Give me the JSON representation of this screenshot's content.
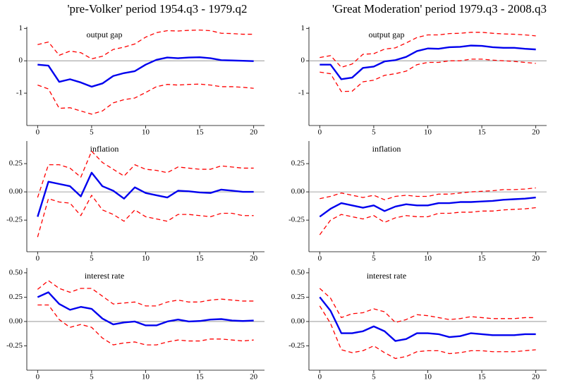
{
  "chart_data": [
    {
      "type": "line",
      "title": "'pre-Volker' period 1954.q3 - 1979.q2",
      "subtitle": "output gap",
      "x": [
        0,
        1,
        2,
        3,
        4,
        5,
        6,
        7,
        8,
        9,
        10,
        11,
        12,
        13,
        14,
        15,
        16,
        17,
        18,
        19,
        20
      ],
      "series": [
        {
          "color": "#ff0000",
          "style": "dashed",
          "values": [
            -0.75,
            -0.87,
            -1.47,
            -1.45,
            -1.55,
            -1.65,
            -1.55,
            -1.3,
            -1.2,
            -1.15,
            -0.98,
            -0.8,
            -0.73,
            -0.75,
            -0.73,
            -0.72,
            -0.75,
            -0.8,
            -0.8,
            -0.82,
            -0.85
          ]
        },
        {
          "color": "#0000ee",
          "style": "solid",
          "values": [
            -0.12,
            -0.15,
            -0.65,
            -0.57,
            -0.67,
            -0.8,
            -0.7,
            -0.47,
            -0.38,
            -0.32,
            -0.12,
            0.03,
            0.1,
            0.08,
            0.1,
            0.11,
            0.08,
            0.02,
            0.01,
            0,
            -0.01
          ]
        },
        {
          "color": "#ff0000",
          "style": "dashed",
          "values": [
            0.5,
            0.58,
            0.17,
            0.3,
            0.25,
            0.06,
            0.14,
            0.35,
            0.42,
            0.52,
            0.73,
            0.87,
            0.93,
            0.92,
            0.94,
            0.95,
            0.93,
            0.85,
            0.84,
            0.82,
            0.82
          ]
        }
      ],
      "xlim": [
        -1,
        21
      ],
      "xticks": [
        0,
        5,
        10,
        15,
        20
      ],
      "ylim": [
        -2,
        1.05
      ],
      "yticks": [
        -1,
        0,
        1
      ],
      "zero_line": true
    },
    {
      "type": "line",
      "title": "'Great Moderation' period 1979.q3 - 2008.q3",
      "subtitle": "output gap",
      "x": [
        0,
        1,
        2,
        3,
        4,
        5,
        6,
        7,
        8,
        9,
        10,
        11,
        12,
        13,
        14,
        15,
        16,
        17,
        18,
        19,
        20
      ],
      "series": [
        {
          "color": "#ff0000",
          "style": "dashed",
          "values": [
            -0.35,
            -0.4,
            -0.95,
            -0.94,
            -0.65,
            -0.6,
            -0.45,
            -0.4,
            -0.32,
            -0.12,
            -0.05,
            -0.05,
            0,
            0,
            0.05,
            0.05,
            0.02,
            0,
            -0.02,
            -0.05,
            -0.08
          ]
        },
        {
          "color": "#0000ee",
          "style": "solid",
          "values": [
            -0.12,
            -0.12,
            -0.57,
            -0.52,
            -0.22,
            -0.18,
            -0.02,
            0.02,
            0.12,
            0.3,
            0.38,
            0.37,
            0.42,
            0.43,
            0.47,
            0.46,
            0.42,
            0.4,
            0.4,
            0.37,
            0.35
          ]
        },
        {
          "color": "#ff0000",
          "style": "dashed",
          "values": [
            0.1,
            0.16,
            -0.2,
            -0.1,
            0.2,
            0.22,
            0.36,
            0.4,
            0.55,
            0.72,
            0.8,
            0.8,
            0.84,
            0.85,
            0.88,
            0.88,
            0.85,
            0.83,
            0.82,
            0.8,
            0.77
          ]
        }
      ],
      "xlim": [
        -1,
        21
      ],
      "xticks": [
        0,
        5,
        10,
        15,
        20
      ],
      "ylim": [
        -2,
        1.05
      ],
      "yticks": [
        -1,
        0,
        1
      ],
      "zero_line": true
    },
    {
      "type": "line",
      "subtitle": "inflation",
      "x": [
        0,
        1,
        2,
        3,
        4,
        5,
        6,
        7,
        8,
        9,
        10,
        11,
        12,
        13,
        14,
        15,
        16,
        17,
        18,
        19,
        20
      ],
      "series": [
        {
          "color": "#ff0000",
          "style": "dashed",
          "values": [
            -0.4,
            -0.06,
            -0.09,
            -0.1,
            -0.21,
            -0.03,
            -0.16,
            -0.2,
            -0.26,
            -0.16,
            -0.22,
            -0.24,
            -0.26,
            -0.2,
            -0.2,
            -0.21,
            -0.22,
            -0.19,
            -0.19,
            -0.21,
            -0.21
          ]
        },
        {
          "color": "#0000ee",
          "style": "solid",
          "values": [
            -0.22,
            0.09,
            0.07,
            0.05,
            -0.04,
            0.17,
            0.05,
            0.01,
            -0.06,
            0.04,
            -0.01,
            -0.03,
            -0.05,
            0.01,
            0.005,
            -0.005,
            -0.01,
            0.02,
            0.01,
            0,
            0
          ]
        },
        {
          "color": "#ff0000",
          "style": "dashed",
          "values": [
            -0.05,
            0.24,
            0.24,
            0.21,
            0.13,
            0.36,
            0.26,
            0.2,
            0.14,
            0.24,
            0.2,
            0.19,
            0.17,
            0.22,
            0.21,
            0.2,
            0.2,
            0.23,
            0.22,
            0.21,
            0.21
          ]
        }
      ],
      "xlim": [
        -1,
        21
      ],
      "xticks": [
        0,
        5,
        10,
        15,
        20
      ],
      "ylim": [
        -0.53,
        0.45
      ],
      "yticks": [
        -0.25,
        {
          "value": 0,
          "label": "0.00"
        },
        0.25
      ],
      "zero_line": true
    },
    {
      "type": "line",
      "subtitle": "inflation",
      "x": [
        0,
        1,
        2,
        3,
        4,
        5,
        6,
        7,
        8,
        9,
        10,
        11,
        12,
        13,
        14,
        15,
        16,
        17,
        18,
        19,
        20
      ],
      "series": [
        {
          "color": "#ff0000",
          "style": "dashed",
          "values": [
            -0.38,
            -0.25,
            -0.2,
            -0.22,
            -0.24,
            -0.21,
            -0.27,
            -0.23,
            -0.21,
            -0.22,
            -0.22,
            -0.19,
            -0.19,
            -0.18,
            -0.18,
            -0.17,
            -0.17,
            -0.16,
            -0.155,
            -0.15,
            -0.14
          ]
        },
        {
          "color": "#0000ee",
          "style": "solid",
          "values": [
            -0.22,
            -0.15,
            -0.1,
            -0.12,
            -0.14,
            -0.12,
            -0.17,
            -0.13,
            -0.11,
            -0.12,
            -0.12,
            -0.1,
            -0.1,
            -0.09,
            -0.09,
            -0.085,
            -0.08,
            -0.07,
            -0.065,
            -0.06,
            -0.05
          ]
        },
        {
          "color": "#ff0000",
          "style": "dashed",
          "values": [
            -0.06,
            -0.04,
            -0.01,
            -0.03,
            -0.05,
            -0.03,
            -0.07,
            -0.04,
            -0.03,
            -0.04,
            -0.04,
            -0.02,
            -0.02,
            -0.01,
            0,
            0.005,
            0.01,
            0.02,
            0.02,
            0.025,
            0.035
          ]
        }
      ],
      "xlim": [
        -1,
        21
      ],
      "xticks": [
        0,
        5,
        10,
        15,
        20
      ],
      "ylim": [
        -0.53,
        0.45
      ],
      "yticks": [
        -0.25,
        {
          "value": 0,
          "label": "0.00"
        },
        0.25
      ],
      "zero_line": true
    },
    {
      "type": "line",
      "subtitle": "interest rate",
      "x": [
        0,
        1,
        2,
        3,
        4,
        5,
        6,
        7,
        8,
        9,
        10,
        11,
        12,
        13,
        14,
        15,
        16,
        17,
        18,
        19,
        20
      ],
      "series": [
        {
          "color": "#ff0000",
          "style": "dashed",
          "values": [
            0.17,
            0.17,
            0.02,
            -0.06,
            -0.03,
            -0.06,
            -0.17,
            -0.24,
            -0.22,
            -0.21,
            -0.24,
            -0.24,
            -0.21,
            -0.19,
            -0.2,
            -0.2,
            -0.18,
            -0.18,
            -0.19,
            -0.2,
            -0.19
          ]
        },
        {
          "color": "#0000ee",
          "style": "solid",
          "values": [
            0.25,
            0.3,
            0.18,
            0.12,
            0.15,
            0.13,
            0.03,
            -0.03,
            -0.01,
            0,
            -0.04,
            -0.04,
            0,
            0.02,
            0,
            0.005,
            0.02,
            0.025,
            0.01,
            0.005,
            0.01
          ]
        },
        {
          "color": "#ff0000",
          "style": "dashed",
          "values": [
            0.33,
            0.42,
            0.34,
            0.3,
            0.34,
            0.34,
            0.26,
            0.18,
            0.19,
            0.2,
            0.16,
            0.16,
            0.2,
            0.22,
            0.2,
            0.2,
            0.22,
            0.23,
            0.22,
            0.21,
            0.21
          ]
        }
      ],
      "xlim": [
        -1,
        21
      ],
      "xticks": [
        0,
        5,
        10,
        15,
        20
      ],
      "ylim": [
        -0.5,
        0.55
      ],
      "yticks": [
        -0.25,
        {
          "value": 0,
          "label": "0.00"
        },
        0.25,
        {
          "value": 0.5,
          "label": "0.50"
        }
      ],
      "zero_line": true
    },
    {
      "type": "line",
      "subtitle": "interest rate",
      "x": [
        0,
        1,
        2,
        3,
        4,
        5,
        6,
        7,
        8,
        9,
        10,
        11,
        12,
        13,
        14,
        15,
        16,
        17,
        18,
        19,
        20
      ],
      "series": [
        {
          "color": "#ff0000",
          "style": "dashed",
          "values": [
            0.16,
            -0.02,
            -0.29,
            -0.32,
            -0.3,
            -0.25,
            -0.32,
            -0.38,
            -0.36,
            -0.31,
            -0.3,
            -0.3,
            -0.33,
            -0.32,
            -0.3,
            -0.3,
            -0.31,
            -0.31,
            -0.31,
            -0.3,
            -0.29
          ]
        },
        {
          "color": "#0000ee",
          "style": "solid",
          "values": [
            0.25,
            0.11,
            -0.12,
            -0.12,
            -0.1,
            -0.05,
            -0.1,
            -0.2,
            -0.18,
            -0.12,
            -0.12,
            -0.13,
            -0.16,
            -0.15,
            -0.12,
            -0.13,
            -0.14,
            -0.14,
            -0.14,
            -0.13,
            -0.13
          ]
        },
        {
          "color": "#ff0000",
          "style": "dashed",
          "values": [
            0.34,
            0.24,
            0.04,
            0.08,
            0.09,
            0.13,
            0.1,
            -0.01,
            0.02,
            0.07,
            0.06,
            0.04,
            0.02,
            0.03,
            0.05,
            0.04,
            0.03,
            0.03,
            0.03,
            0.04,
            0.04
          ]
        }
      ],
      "xlim": [
        -1,
        21
      ],
      "xticks": [
        0,
        5,
        10,
        15,
        20
      ],
      "ylim": [
        -0.5,
        0.55
      ],
      "yticks": [
        -0.25,
        {
          "value": 0,
          "label": "0.00"
        },
        0.25,
        {
          "value": 0.5,
          "label": "0.50"
        }
      ],
      "zero_line": true
    }
  ]
}
